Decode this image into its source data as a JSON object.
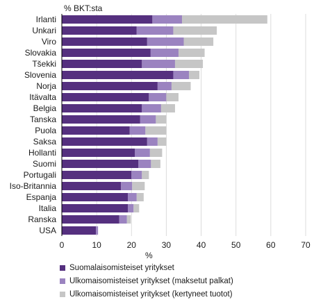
{
  "chart_data": {
    "type": "bar",
    "orientation": "horizontal",
    "stacked": true,
    "unit_label": "% BKT:sta",
    "xlabel": "%",
    "xlim": [
      0,
      70
    ],
    "xticks": [
      0,
      10,
      20,
      30,
      40,
      50,
      60,
      70
    ],
    "grid": true,
    "legend_position": "bottom",
    "categories": [
      "Irlanti",
      "Unkari",
      "Viro",
      "Slovakia",
      "Tšekki",
      "Slovenia",
      "Norja",
      "Itävalta",
      "Belgia",
      "Tanska",
      "Puola",
      "Saksa",
      "Hollanti",
      "Suomi",
      "Portugali",
      "Iso-Britannia",
      "Espanja",
      "Italia",
      "Ranska",
      "USA"
    ],
    "series": [
      {
        "name": "Suomalaisomisteiset yritykset",
        "color": "#55307f",
        "values": [
          26,
          21.5,
          24.5,
          25.5,
          23,
          32,
          27.5,
          25,
          23,
          22.5,
          19.5,
          24.5,
          21,
          22,
          20,
          17,
          19,
          19,
          16.5,
          9.8
        ]
      },
      {
        "name": "Ulkomaisomisteiset yritykset (maksetut palkat)",
        "color": "#9b83c0",
        "values": [
          8.5,
          10.5,
          10.5,
          8,
          9.5,
          4.5,
          4,
          5,
          5.5,
          4.5,
          4.5,
          3,
          4.3,
          3.6,
          3,
          3.2,
          2.5,
          1.6,
          2.2,
          0.6
        ]
      },
      {
        "name": "Ulkomaisomisteiset yritykset (kertyneet tuotot)",
        "color": "#c6c6c6",
        "values": [
          24.5,
          12.5,
          8.5,
          7.5,
          8,
          3,
          5.5,
          3.5,
          4,
          3,
          6,
          2.5,
          3.5,
          2.7,
          2,
          3.6,
          2,
          1.6,
          1.1,
          0
        ]
      }
    ]
  }
}
